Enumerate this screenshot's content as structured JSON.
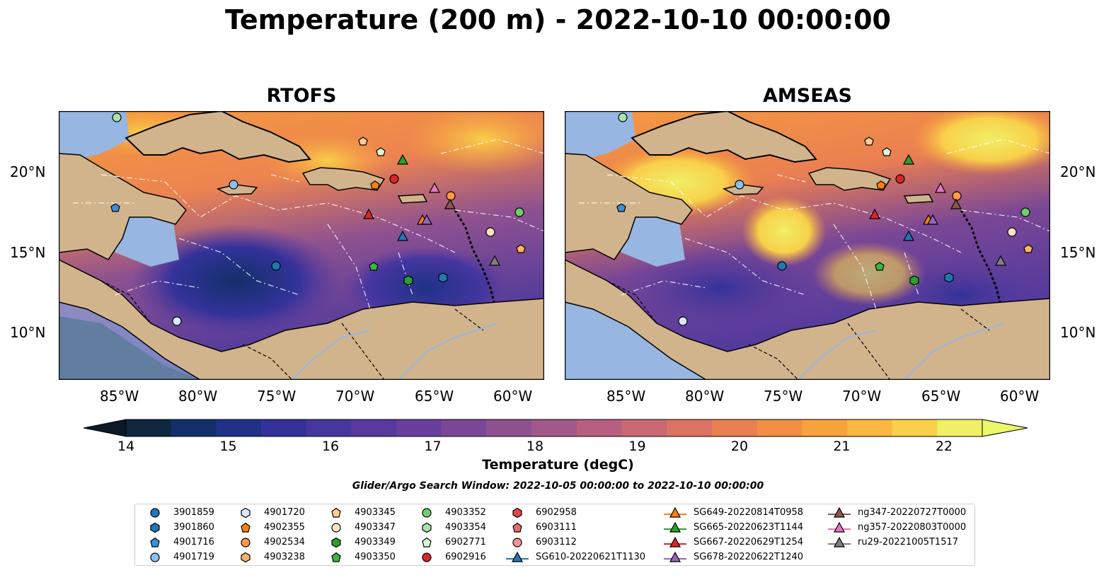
{
  "title": "Temperature (200 m) - 2022-10-10 00:00:00",
  "panels": [
    {
      "title": "RTOFS"
    },
    {
      "title": "AMSEAS"
    }
  ],
  "lat_ticks": [
    "20°N",
    "15°N",
    "10°N"
  ],
  "lon_ticks": [
    "85°W",
    "80°W",
    "75°W",
    "70°W",
    "65°W",
    "60°W"
  ],
  "colorbar": {
    "label": "Temperature (degC)",
    "min": 14,
    "max": 22,
    "ticks": [
      "14",
      "15",
      "16",
      "17",
      "18",
      "19",
      "20",
      "21",
      "22"
    ],
    "colors": [
      "#0f2840",
      "#13306a",
      "#1f3288",
      "#33329a",
      "#46369f",
      "#57399f",
      "#683f9c",
      "#7a4796",
      "#8e5190",
      "#a3588a",
      "#b85f80",
      "#cb6874",
      "#db7263",
      "#ea7f52",
      "#f38e44",
      "#f9a23d",
      "#fbb73f",
      "#f8d04a",
      "#f0ef66"
    ],
    "under_color": "#0b1a26",
    "over_color": "#ecf86a"
  },
  "search_window": "Glider/Argo Search Window: 2022-10-05 00:00:00 to 2022-10-10 00:00:00",
  "colors": {
    "land": "#d2b48c",
    "shelf": "#97b6e1",
    "frame": "#000000"
  },
  "legend": [
    {
      "label": "3901859",
      "marker": "circle",
      "color": "#1f77b4"
    },
    {
      "label": "3901860",
      "marker": "hexagon",
      "color": "#1f77b4"
    },
    {
      "label": "4901716",
      "marker": "pentagon",
      "color": "#3d8fd8"
    },
    {
      "label": "4901719",
      "marker": "circle",
      "color": "#8cc3ee"
    },
    {
      "label": "4901720",
      "marker": "hexagon",
      "color": "#d8eaf9"
    },
    {
      "label": "4902355",
      "marker": "pentagon",
      "color": "#ff7f0e"
    },
    {
      "label": "4902534",
      "marker": "circle",
      "color": "#ff9a40"
    },
    {
      "label": "4903238",
      "marker": "hexagon",
      "color": "#ffb366"
    },
    {
      "label": "4903345",
      "marker": "pentagon",
      "color": "#ffcc99"
    },
    {
      "label": "4903347",
      "marker": "circle",
      "color": "#ffe2c4"
    },
    {
      "label": "4903349",
      "marker": "hexagon",
      "color": "#2ca02c"
    },
    {
      "label": "4903350",
      "marker": "pentagon",
      "color": "#3db83d"
    },
    {
      "label": "4903352",
      "marker": "circle",
      "color": "#6fcf6f"
    },
    {
      "label": "4903354",
      "marker": "hexagon",
      "color": "#a8e4a8"
    },
    {
      "label": "6902771",
      "marker": "pentagon",
      "color": "#dcf5dc"
    },
    {
      "label": "6902916",
      "marker": "circle",
      "color": "#d62728"
    },
    {
      "label": "6902958",
      "marker": "hexagon",
      "color": "#e0474a"
    },
    {
      "label": "6903111",
      "marker": "pentagon",
      "color": "#ea6a6e"
    },
    {
      "label": "6903112",
      "marker": "circle",
      "color": "#f39595"
    },
    {
      "label": "SG610-20220621T1130",
      "marker": "triangle",
      "color": "#1f77b4"
    },
    {
      "label": "SG649-20220814T0958",
      "marker": "triangle",
      "color": "#ff7f0e"
    },
    {
      "label": "SG665-20220623T1144",
      "marker": "triangle",
      "color": "#2ca02c"
    },
    {
      "label": "SG667-20220629T1254",
      "marker": "triangle",
      "color": "#d62728"
    },
    {
      "label": "SG678-20220622T1240",
      "marker": "triangle",
      "color": "#9467bd"
    },
    {
      "label": "ng347-20220727T0000",
      "marker": "triangle",
      "color": "#8c564b"
    },
    {
      "label": "ng357-20220803T0000",
      "marker": "triangle",
      "color": "#e377c2"
    },
    {
      "label": "ru29-20221005T1517",
      "marker": "triangle",
      "color": "#7f7f7f"
    }
  ],
  "chart_data": {
    "type": "map",
    "lon_range": [
      -89,
      -58.3
    ],
    "lat_range": [
      7,
      23.7
    ],
    "platforms": [
      {
        "id": "3901859",
        "lon": -75.1,
        "lat": 14.1
      },
      {
        "id": "3901860",
        "lon": -64.6,
        "lat": 13.4
      },
      {
        "id": "4901716",
        "lon": -85.4,
        "lat": 17.7
      },
      {
        "id": "4901719",
        "lon": -78.0,
        "lat": 19.2
      },
      {
        "id": "4901720",
        "lon": -81.5,
        "lat": 10.7
      },
      {
        "id": "4902355",
        "lon": -67.5,
        "lat": 19.1
      },
      {
        "id": "4902534",
        "lon": -64.0,
        "lat": 18.5
      },
      {
        "id": "4903238",
        "lon": -59.6,
        "lat": 15.2
      },
      {
        "id": "4903345",
        "lon": -69.6,
        "lat": 21.9
      },
      {
        "id": "4903347",
        "lon": -60.6,
        "lat": 16.2
      },
      {
        "id": "4903349",
        "lon": -66.8,
        "lat": 13.2
      },
      {
        "id": "4903350",
        "lon": -69.0,
        "lat": 14.1
      },
      {
        "id": "4903352",
        "lon": -59.7,
        "lat": 17.5
      },
      {
        "id": "4903354",
        "lon": -85.3,
        "lat": 23.3
      },
      {
        "id": "6902771",
        "lon": -68.6,
        "lat": 21.3
      },
      {
        "id": "6902916",
        "lon": -67.6,
        "lat": 19.5
      },
      {
        "id": "6903112",
        "lon": -60.7,
        "lat": 16.3
      },
      {
        "id": "SG610-20220621T1130",
        "lon": -67.1,
        "lat": 16.1
      },
      {
        "id": "SG649-20220814T0958",
        "lon": -66.0,
        "lat": 17.1
      },
      {
        "id": "SG665-20220623T1144",
        "lon": -67.1,
        "lat": 20.8
      },
      {
        "id": "SG667-20220629T1254",
        "lon": -69.3,
        "lat": 17.4
      },
      {
        "id": "SG678-20220622T1240",
        "lon": -65.6,
        "lat": 17.0
      },
      {
        "id": "ng347-20220727T0000",
        "lon": -64.1,
        "lat": 18.0
      },
      {
        "id": "ng357-20220803T0000",
        "lon": -65.2,
        "lat": 19.0
      },
      {
        "id": "ru29-20221005T1517",
        "lon": -61.2,
        "lat": 14.6
      }
    ]
  }
}
